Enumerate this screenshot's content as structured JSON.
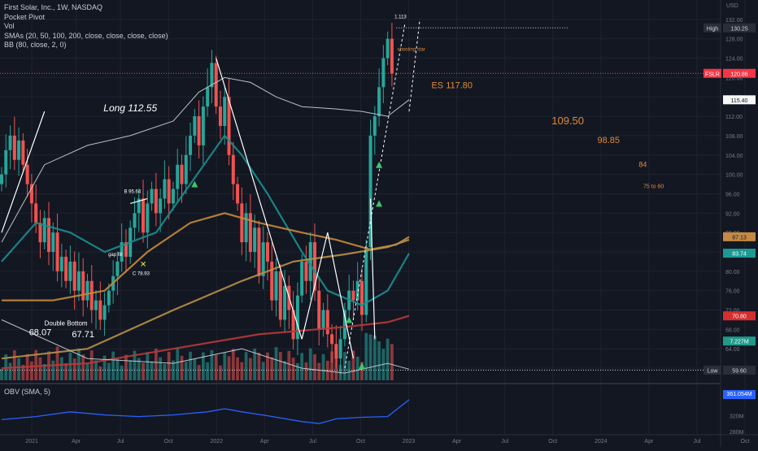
{
  "header": {
    "title": "First Solar, Inc., 1W, NASDAQ",
    "indicators": [
      "Pocket Pivot",
      "Vol",
      "SMAs (20, 50, 100, 200, close, close, close, close)",
      "BB (80, close, 2, 0)"
    ]
  },
  "obv": {
    "label": "OBV (SMA, 5)",
    "value_badge": "361.054M"
  },
  "colors": {
    "background": "#131722",
    "up": "#26a69a",
    "down": "#ef5350",
    "sma_teal": "#1a8f8f",
    "sma_orange": "#c58a3a",
    "sma_red": "#b83a3a",
    "bb": "#cfd3d8",
    "annotation_orange": "#e0893a",
    "obv": "#2962ff"
  },
  "chart_data": {
    "type": "candlestick",
    "currency": "USD",
    "y_ticks": [
      "132.00",
      "128.00",
      "124.00",
      "120.00",
      "116.00",
      "112.00",
      "108.00",
      "104.00",
      "100.00",
      "96.00",
      "92.00",
      "88.00",
      "84.00",
      "80.00",
      "76.00",
      "72.00",
      "68.00",
      "64.00",
      "60.00"
    ],
    "ylim": [
      57.5,
      136
    ],
    "x_ticks": [
      "2021",
      "Apr",
      "Jul",
      "Oct",
      "2022",
      "Apr",
      "Jul",
      "Oct",
      "2023",
      "Apr",
      "Jul",
      "Oct",
      "2024",
      "Apr",
      "Jul",
      "Oct"
    ],
    "obv_ticks": [
      "320M",
      "280M"
    ],
    "price_badges": [
      {
        "label": "High",
        "value": "130.25",
        "price": 130.25,
        "bg": "#2a2e39",
        "fg": "#d1d4dc"
      },
      {
        "label": "FSLR",
        "value": "120.86",
        "price": 120.86,
        "bg": "#f23645",
        "fg": "#ffffff"
      },
      {
        "label": "",
        "value": "115.40",
        "price": 115.4,
        "bg": "#f7f7f7",
        "fg": "#131722"
      },
      {
        "label": "",
        "value": "87.13",
        "price": 87.13,
        "bg": "#c48a44",
        "fg": "#131722"
      },
      {
        "label": "",
        "value": "83.74",
        "price": 83.74,
        "bg": "#1a9a92",
        "fg": "#ffffff"
      },
      {
        "label": "",
        "value": "70.80",
        "price": 70.8,
        "bg": "#d32f2f",
        "fg": "#ffffff"
      },
      {
        "label": "",
        "value": "7.227M",
        "price": 65.6,
        "bg": "#1f9a8a",
        "fg": "#ffffff"
      },
      {
        "label": "Low",
        "value": "59.60",
        "price": 59.6,
        "bg": "#2a2e39",
        "fg": "#d1d4dc"
      }
    ],
    "annotations": [
      {
        "text": "Long 112.55",
        "week": 30,
        "price": 113,
        "color": "#ffffff",
        "size": 12,
        "italic": true
      },
      {
        "text": "Double Bottom",
        "week": 15,
        "price": 68.8,
        "color": "#ffffff",
        "size": 8
      },
      {
        "text": "68.07",
        "week": 9,
        "price": 66.8,
        "color": "#ffffff",
        "size": 11
      },
      {
        "text": "67.71",
        "week": 19,
        "price": 66.4,
        "color": "#ffffff",
        "size": 11
      },
      {
        "text": "B 95.64",
        "week": 30.5,
        "price": 96.2,
        "color": "#ffffff",
        "size": 6
      },
      {
        "text": "gap fill",
        "week": 26.5,
        "price": 83.2,
        "color": "#ffffff",
        "size": 6
      },
      {
        "text": "C 78.93",
        "week": 32.5,
        "price": 79.2,
        "color": "#ffffff",
        "size": 6
      },
      {
        "text": "1.113",
        "week": 93,
        "price": 132.2,
        "color": "#ffffff",
        "size": 6
      },
      {
        "text": "shooting star",
        "week": 95.5,
        "price": 125.5,
        "color": "#e0893a",
        "size": 6
      },
      {
        "text": "ES 117.80",
        "week": 105,
        "price": 117.8,
        "color": "#e0893a",
        "size": 11
      },
      {
        "text": "109.50",
        "week": 132,
        "price": 110.3,
        "color": "#e0893a",
        "size": 13
      },
      {
        "text": "98.85",
        "week": 141.5,
        "price": 106.5,
        "color": "#e0893a",
        "size": 11
      },
      {
        "text": "84",
        "week": 149.5,
        "price": 101.5,
        "color": "#e0893a",
        "size": 9
      },
      {
        "text": "75 to 60",
        "week": 152,
        "price": 97.2,
        "color": "#e0893a",
        "size": 7
      }
    ],
    "reference_lines": [
      {
        "name": "high",
        "price": 130.25,
        "style": "dotted",
        "color": "#d1d4dc"
      },
      {
        "name": "last",
        "price": 120.86,
        "style": "dotted",
        "color": "#ef5350"
      },
      {
        "name": "low",
        "price": 59.6,
        "style": "dotted",
        "color": "#d1d4dc"
      }
    ],
    "series": [
      {
        "name": "FSLR",
        "style": "candles",
        "closes": [
          100,
          105,
          108,
          103,
          107,
          102,
          98,
          94,
          90,
          86,
          91,
          84,
          88,
          80,
          83,
          78,
          82,
          76,
          80,
          74,
          78,
          72,
          74,
          70,
          73,
          76,
          79,
          82,
          86,
          83,
          89,
          92,
          95,
          88,
          94,
          97,
          92,
          95,
          99,
          94,
          97,
          102,
          98,
          104,
          108,
          112,
          106,
          114,
          118,
          123,
          114,
          110,
          116,
          104,
          98,
          94,
          86,
          92,
          84,
          89,
          79,
          86,
          82,
          74,
          80,
          70,
          77,
          72,
          66,
          75,
          82,
          78,
          86,
          76,
          68,
          72,
          67,
          65,
          62,
          66,
          72,
          76,
          74,
          78,
          71,
          85,
          108,
          112,
          118,
          124,
          128,
          120.86
        ]
      },
      {
        "name": "SMA 20",
        "style": "line",
        "color": "#1a8f8f",
        "values": [
          [
            0,
            82
          ],
          [
            8,
            90
          ],
          [
            16,
            88
          ],
          [
            24,
            84
          ],
          [
            30,
            86
          ],
          [
            36,
            88
          ],
          [
            44,
            98
          ],
          [
            52,
            108
          ],
          [
            56,
            104
          ],
          [
            62,
            96
          ],
          [
            70,
            84
          ],
          [
            76,
            76
          ],
          [
            84,
            73
          ],
          [
            90,
            76
          ],
          [
            95,
            83.7
          ]
        ]
      },
      {
        "name": "SMA 50",
        "style": "line",
        "color": "#c58a3a",
        "values": [
          [
            0,
            74
          ],
          [
            12,
            74
          ],
          [
            24,
            76
          ],
          [
            34,
            84
          ],
          [
            44,
            90
          ],
          [
            52,
            92
          ],
          [
            60,
            90
          ],
          [
            70,
            88
          ],
          [
            78,
            86.5
          ],
          [
            86,
            84.5
          ],
          [
            92,
            85.5
          ],
          [
            95,
            87.1
          ]
        ]
      },
      {
        "name": "SMA 100",
        "style": "line",
        "color": "#b89048",
        "values": [
          [
            0,
            62
          ],
          [
            20,
            64
          ],
          [
            40,
            72
          ],
          [
            56,
            78
          ],
          [
            68,
            82
          ],
          [
            80,
            83.5
          ],
          [
            90,
            85
          ],
          [
            95,
            86.5
          ]
        ]
      },
      {
        "name": "SMA 200",
        "style": "line",
        "color": "#b83a3a",
        "values": [
          [
            0,
            60
          ],
          [
            20,
            61
          ],
          [
            40,
            64
          ],
          [
            60,
            67
          ],
          [
            80,
            68.5
          ],
          [
            90,
            69.5
          ],
          [
            95,
            70.8
          ]
        ]
      },
      {
        "name": "BB 80",
        "style": "line",
        "color": "#cfd3d8",
        "values": [
          [
            0,
            86
          ],
          [
            10,
            102
          ],
          [
            20,
            106
          ],
          [
            30,
            108
          ],
          [
            40,
            111
          ],
          [
            46,
            117
          ],
          [
            52,
            120
          ],
          [
            58,
            119
          ],
          [
            64,
            116
          ],
          [
            70,
            114
          ],
          [
            78,
            113.5
          ],
          [
            84,
            113
          ],
          [
            90,
            112
          ],
          [
            95,
            115.4
          ]
        ]
      }
    ],
    "obv_series": [
      [
        0,
        310
      ],
      [
        8,
        318
      ],
      [
        16,
        330
      ],
      [
        24,
        322
      ],
      [
        32,
        318
      ],
      [
        40,
        322
      ],
      [
        48,
        330
      ],
      [
        52,
        338
      ],
      [
        56,
        330
      ],
      [
        62,
        320
      ],
      [
        70,
        305
      ],
      [
        74,
        300
      ],
      [
        78,
        312
      ],
      [
        84,
        316
      ],
      [
        90,
        318
      ],
      [
        95,
        361
      ]
    ]
  }
}
